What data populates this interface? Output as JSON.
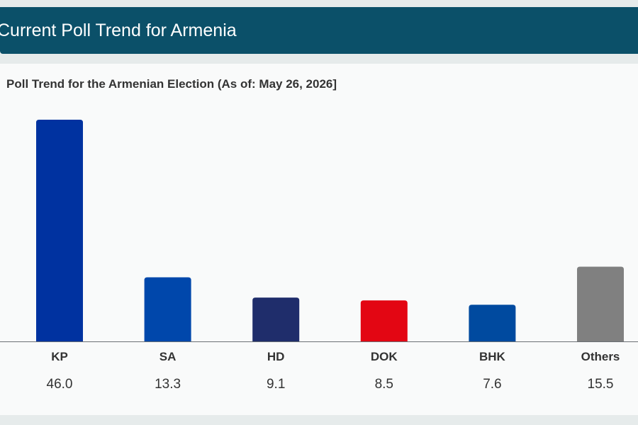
{
  "header": {
    "title": "Current Poll Trend for Armenia"
  },
  "chart_data": {
    "type": "bar",
    "title": "Poll Trend for the Armenian Election (As of: May 26, 2026]",
    "xlabel": "",
    "ylabel": "",
    "ylim": [
      0,
      46.0
    ],
    "grid": false,
    "categories": [
      "KP",
      "SA",
      "HD",
      "DOK",
      "BHK",
      "Others"
    ],
    "values": [
      46.0,
      13.3,
      9.1,
      8.5,
      7.6,
      15.5
    ],
    "value_labels": [
      "46.0",
      "13.3",
      "9.1",
      "8.5",
      "7.6",
      "15.5"
    ],
    "colors": [
      "#0032a0",
      "#0047ab",
      "#1f2d6b",
      "#e30613",
      "#004a9f",
      "#808080"
    ]
  }
}
